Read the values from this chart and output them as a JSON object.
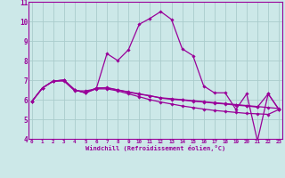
{
  "xlabel": "Windchill (Refroidissement éolien,°C)",
  "bg_color": "#cce8e8",
  "line_color": "#990099",
  "grid_color": "#aacccc",
  "xmin": 0,
  "xmax": 23,
  "ymin": 4,
  "ymax": 11,
  "series": [
    [
      5.9,
      6.6,
      6.95,
      6.95,
      6.45,
      6.45,
      6.55,
      8.35,
      8.0,
      8.55,
      9.85,
      10.15,
      10.5,
      10.1,
      8.6,
      8.25,
      6.7,
      6.35,
      6.35,
      5.5,
      6.3,
      3.9,
      6.3,
      5.5
    ],
    [
      5.9,
      6.6,
      6.95,
      7.0,
      6.5,
      6.35,
      6.6,
      6.6,
      6.5,
      6.4,
      6.3,
      6.2,
      6.1,
      6.05,
      6.0,
      5.95,
      5.9,
      5.85,
      5.8,
      5.75,
      5.7,
      5.65,
      5.6,
      5.55
    ],
    [
      5.9,
      6.6,
      6.95,
      7.0,
      6.5,
      6.35,
      6.55,
      6.55,
      6.45,
      6.3,
      6.15,
      6.0,
      5.88,
      5.78,
      5.68,
      5.6,
      5.52,
      5.45,
      5.4,
      5.35,
      5.3,
      5.28,
      5.25,
      5.5
    ],
    [
      5.9,
      6.6,
      6.95,
      7.0,
      6.5,
      6.35,
      6.58,
      6.62,
      6.5,
      6.38,
      6.28,
      6.2,
      6.08,
      6.02,
      5.98,
      5.92,
      5.88,
      5.82,
      5.78,
      5.72,
      5.68,
      5.62,
      6.3,
      5.5
    ]
  ]
}
